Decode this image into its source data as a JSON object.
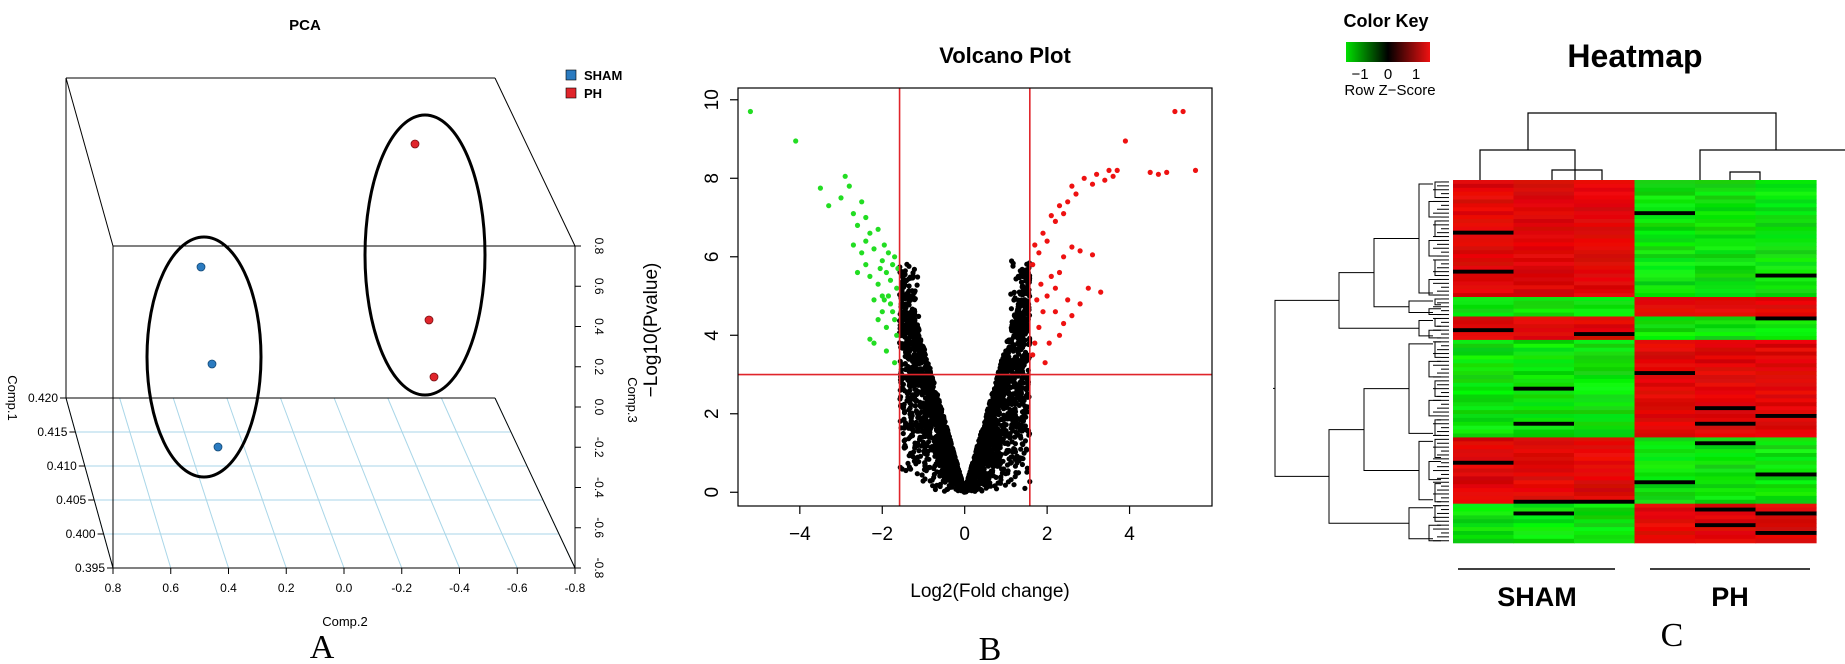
{
  "chart_data": [
    {
      "type": "scatter",
      "panel_label": "A",
      "title": "PCA",
      "xlabel": "Comp.2",
      "ylabel": "Comp.1",
      "zlabel": "Comp.3",
      "xlim": [
        0.8,
        -0.8
      ],
      "ylim": [
        0.395,
        0.42
      ],
      "zlim": [
        -0.8,
        0.8
      ],
      "x_ticks": [
        "0.8",
        "0.6",
        "0.4",
        "0.2",
        "0.0",
        "-0.2",
        "-0.4",
        "-0.6",
        "-0.8"
      ],
      "y_ticks": [
        "0.395",
        "0.400",
        "0.405",
        "0.410",
        "0.415",
        "0.420"
      ],
      "z_ticks": [
        "-0.8",
        "-0.6",
        "-0.4",
        "-0.2",
        "0.0",
        "0.2",
        "0.4",
        "0.6",
        "0.8"
      ],
      "legend_position": "top-right",
      "series": [
        {
          "name": "SHAM",
          "color": "#2b7bc0"
        },
        {
          "name": "PH",
          "color": "#e0252b"
        }
      ]
    },
    {
      "type": "scatter",
      "panel_label": "B",
      "title": "Volcano Plot",
      "xlabel": "Log2(Fold change)",
      "ylabel": "−Log10(Pvalue)",
      "xlim": [
        -5.5,
        6.0
      ],
      "ylim": [
        -0.35,
        10.3
      ],
      "x_ticks": [
        "−4",
        "−2",
        "0",
        "2",
        "4"
      ],
      "y_ticks": [
        "0",
        "2",
        "4",
        "6",
        "8",
        "10"
      ],
      "thresholds": {
        "x": [
          -1.58,
          1.58
        ],
        "y": 3.0,
        "color": "#e0252b"
      },
      "series": [
        {
          "category": "down",
          "color": "#22dd22",
          "points": [
            [
              -5.2,
              9.7
            ],
            [
              -4.1,
              8.95
            ],
            [
              -3.5,
              7.75
            ],
            [
              -3.3,
              7.3
            ],
            [
              -3.0,
              7.5
            ],
            [
              -2.9,
              8.05
            ],
            [
              -2.8,
              7.8
            ],
            [
              -2.7,
              7.1
            ],
            [
              -2.6,
              6.8
            ],
            [
              -2.5,
              7.4
            ],
            [
              -2.4,
              7.0
            ],
            [
              -2.3,
              6.6
            ],
            [
              -2.2,
              6.2
            ],
            [
              -2.1,
              6.7
            ],
            [
              -2.0,
              5.9
            ],
            [
              -1.95,
              6.3
            ],
            [
              -1.9,
              5.6
            ],
            [
              -1.85,
              6.1
            ],
            [
              -1.8,
              5.4
            ],
            [
              -1.75,
              5.8
            ],
            [
              -1.7,
              6.0
            ],
            [
              -1.65,
              5.2
            ],
            [
              -1.62,
              5.7
            ],
            [
              -2.3,
              5.5
            ],
            [
              -2.2,
              4.9
            ],
            [
              -2.1,
              5.3
            ],
            [
              -2.0,
              4.6
            ],
            [
              -1.9,
              4.2
            ],
            [
              -1.8,
              4.8
            ],
            [
              -1.7,
              4.4
            ],
            [
              -1.65,
              4.0
            ],
            [
              -2.4,
              5.8
            ],
            [
              -2.5,
              6.1
            ],
            [
              -2.6,
              5.6
            ],
            [
              -2.7,
              6.3
            ],
            [
              -2.3,
              3.9
            ],
            [
              -2.2,
              3.8
            ],
            [
              -1.9,
              3.6
            ],
            [
              -1.7,
              3.3
            ],
            [
              -2.0,
              5.0
            ],
            [
              -2.1,
              4.4
            ],
            [
              -2.4,
              6.4
            ],
            [
              -1.85,
              5.0
            ],
            [
              -1.75,
              4.6
            ],
            [
              -2.05,
              5.7
            ],
            [
              -1.95,
              4.9
            ]
          ]
        },
        {
          "category": "up",
          "color": "#ee1111",
          "points": [
            [
              5.1,
              9.7
            ],
            [
              5.3,
              9.7
            ],
            [
              5.6,
              8.2
            ],
            [
              4.9,
              8.15
            ],
            [
              4.7,
              8.1
            ],
            [
              4.5,
              8.15
            ],
            [
              3.9,
              8.95
            ],
            [
              3.7,
              8.2
            ],
            [
              3.6,
              8.05
            ],
            [
              3.5,
              8.2
            ],
            [
              3.4,
              7.95
            ],
            [
              3.2,
              8.1
            ],
            [
              3.1,
              7.85
            ],
            [
              2.9,
              8.0
            ],
            [
              2.7,
              7.6
            ],
            [
              2.6,
              7.8
            ],
            [
              2.5,
              7.4
            ],
            [
              2.4,
              7.1
            ],
            [
              2.3,
              7.3
            ],
            [
              2.2,
              6.9
            ],
            [
              2.1,
              7.05
            ],
            [
              2.0,
              6.4
            ],
            [
              1.9,
              6.6
            ],
            [
              1.8,
              6.1
            ],
            [
              1.7,
              6.3
            ],
            [
              1.65,
              5.8
            ],
            [
              3.1,
              6.05
            ],
            [
              2.8,
              6.15
            ],
            [
              2.6,
              6.25
            ],
            [
              2.4,
              6.0
            ],
            [
              2.3,
              5.6
            ],
            [
              2.2,
              5.2
            ],
            [
              2.1,
              5.5
            ],
            [
              2.0,
              5.0
            ],
            [
              1.9,
              4.6
            ],
            [
              1.8,
              4.2
            ],
            [
              1.7,
              3.8
            ],
            [
              1.65,
              3.5
            ],
            [
              3.3,
              5.1
            ],
            [
              3.0,
              5.2
            ],
            [
              2.8,
              4.8
            ],
            [
              2.6,
              4.5
            ],
            [
              2.5,
              4.9
            ],
            [
              2.4,
              4.3
            ],
            [
              2.3,
              4.0
            ],
            [
              1.95,
              3.3
            ],
            [
              2.05,
              3.8
            ],
            [
              2.2,
              4.6
            ],
            [
              1.85,
              5.3
            ],
            [
              1.75,
              4.9
            ]
          ]
        }
      ]
    },
    {
      "type": "heatmap",
      "panel_label": "C",
      "title": "Heatmap",
      "color_key": {
        "title": "Color Key",
        "label": "Row Z−Score",
        "ticks": [
          "−1",
          "0",
          "1"
        ],
        "low": "#00e000",
        "mid": "#000000",
        "high": "#ee1111"
      },
      "groups": [
        {
          "name": "SHAM",
          "columns": 3
        },
        {
          "name": "PH",
          "columns": 3
        }
      ],
      "blocks": [
        {
          "rows": 30,
          "pattern": "SHAM-high"
        },
        {
          "rows": 5,
          "pattern": "SHAM-low"
        },
        {
          "rows": 6,
          "pattern": "SHAM-high"
        },
        {
          "rows": 25,
          "pattern": "SHAM-low"
        },
        {
          "rows": 17,
          "pattern": "SHAM-high"
        },
        {
          "rows": 10,
          "pattern": "SHAM-low"
        }
      ]
    }
  ]
}
